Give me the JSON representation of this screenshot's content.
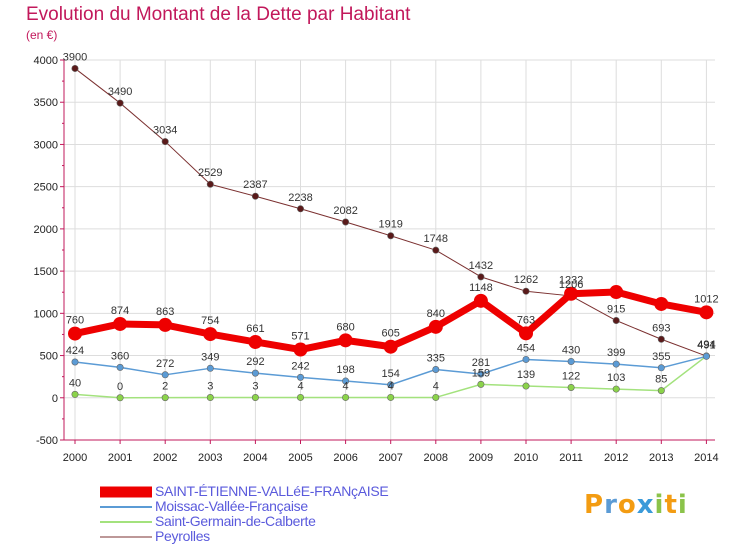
{
  "title": "Evolution du Montant de la Dette par Habitant",
  "subtitle": "(en €)",
  "logo": {
    "text": "Proxiti",
    "icon": "proxiti-logo"
  },
  "colors": {
    "background": "#ffffff",
    "title": "#c2185b",
    "axis": "#c2185b",
    "grid": "#dddddd",
    "legend_text": "#5a5adc"
  },
  "chart_data": {
    "type": "line",
    "title": "Evolution du Montant de la Dette par Habitant",
    "subtitle": "(en €)",
    "x": [
      "2000",
      "2001",
      "2002",
      "2003",
      "2004",
      "2005",
      "2006",
      "2007",
      "2008",
      "2009",
      "2010",
      "2011",
      "2012",
      "2013",
      "2014"
    ],
    "ylim": [
      -500,
      4000
    ],
    "yticks": [
      -500,
      0,
      500,
      1000,
      1500,
      2000,
      2500,
      3000,
      3500,
      4000
    ],
    "grid": true,
    "legend_position": "bottom-left",
    "series": [
      {
        "name": "SAINT-ÉTIENNE-VALLéE-FRANçAISE",
        "color": "#ee0000",
        "marker": "#ee0000",
        "width": 7,
        "radius": 7,
        "values": [
          760,
          874,
          863,
          754,
          661,
          571,
          680,
          605,
          840,
          1148,
          763,
          1232,
          1252,
          1111,
          1012
        ],
        "labels": [
          "760",
          "874",
          "863",
          "754",
          "661",
          "571",
          "680",
          "605",
          "840",
          "1148",
          "763",
          "1232",
          "",
          "",
          "1012"
        ]
      },
      {
        "name": "Moissac-Vallée-Française",
        "color": "#5b9bd5",
        "marker": "#5b9bd5",
        "width": 1.5,
        "radius": 3.2,
        "values": [
          424,
          360,
          272,
          349,
          292,
          242,
          198,
          154,
          335,
          281,
          454,
          430,
          399,
          355,
          491
        ],
        "labels": [
          "424",
          "360",
          "272",
          "349",
          "292",
          "242",
          "198",
          "154",
          "335",
          "281",
          "454",
          "430",
          "399",
          "355",
          "491"
        ]
      },
      {
        "name": "Saint-Germain-de-Calberte",
        "color": "#a3e27d",
        "marker": "#8bd34a",
        "width": 1.5,
        "radius": 3.2,
        "values": [
          40,
          0,
          2,
          3,
          3,
          4,
          4,
          4,
          4,
          159,
          139,
          122,
          103,
          85,
          494
        ],
        "labels": [
          "40",
          "0",
          "2",
          "3",
          "3",
          "4",
          "4",
          "4",
          "4",
          "159",
          "139",
          "122",
          "103",
          "85",
          "494"
        ]
      },
      {
        "name": "Peyrolles",
        "color": "#7b3030",
        "marker": "#5a1a1a",
        "width": 1,
        "radius": 3.2,
        "values": [
          3900,
          3490,
          3034,
          2529,
          2387,
          2238,
          2082,
          1919,
          1748,
          1432,
          1262,
          1206,
          915,
          693,
          494
        ],
        "labels": [
          "3900",
          "3490",
          "3034",
          "2529",
          "2387",
          "2238",
          "2082",
          "1919",
          "1748",
          "1432",
          "1262",
          "1206",
          "915",
          "693",
          "494"
        ]
      }
    ]
  }
}
